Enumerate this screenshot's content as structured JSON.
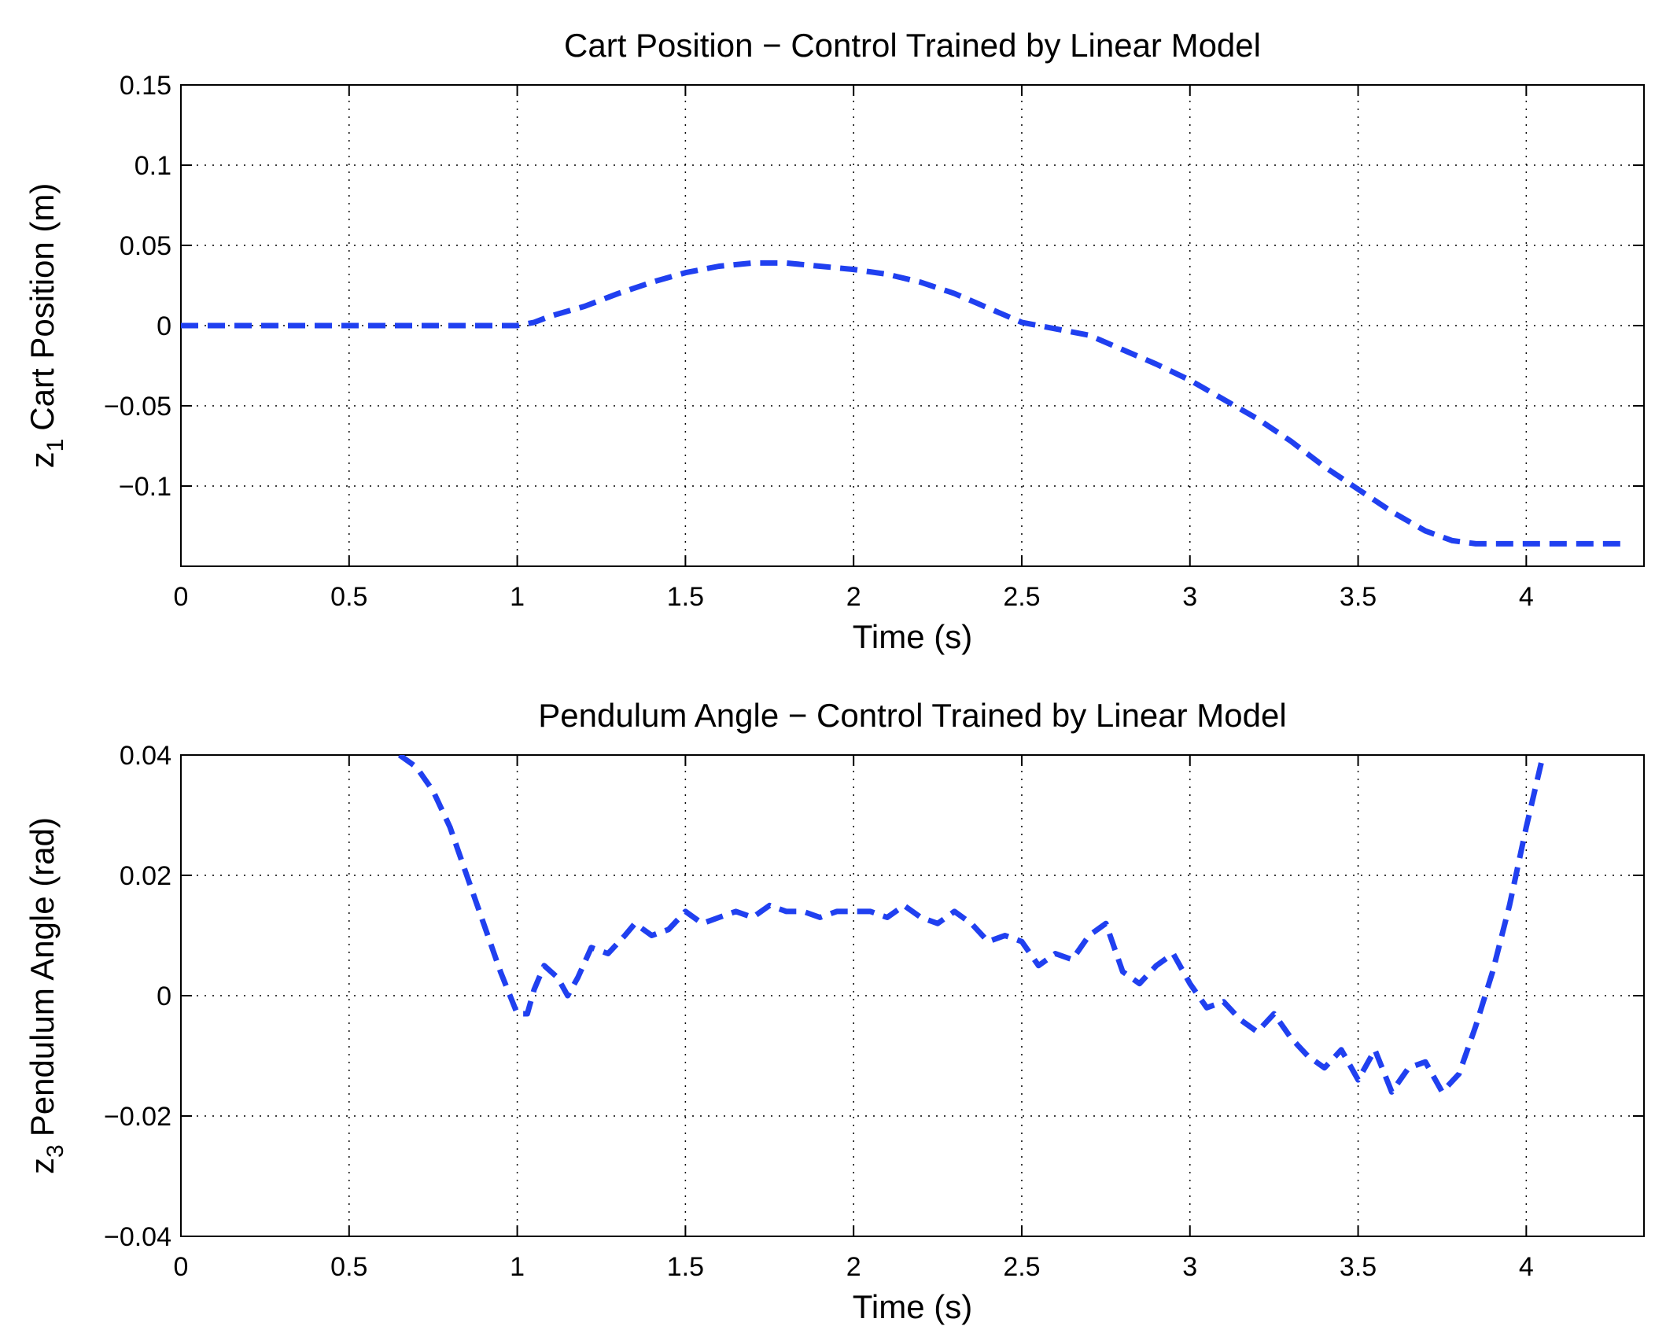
{
  "chart_data": [
    {
      "type": "line",
      "title": "Cart Position − Control Trained by Linear Model",
      "xlabel": "Time (s)",
      "ylabel_var": "z",
      "ylabel_sub": "1",
      "ylabel_text": "Cart Position (m)",
      "xlim": [
        0,
        4.35
      ],
      "ylim": [
        -0.15,
        0.15
      ],
      "grid": true,
      "x_ticks": [
        0,
        0.5,
        1,
        1.5,
        2,
        2.5,
        3,
        3.5,
        4
      ],
      "x_tick_labels": [
        "0",
        "0.5",
        "1",
        "1.5",
        "2",
        "2.5",
        "3",
        "3.5",
        "4"
      ],
      "y_ticks": [
        -0.1,
        -0.05,
        0,
        0.05,
        0.1,
        0.15
      ],
      "y_tick_labels": [
        "−0.1",
        "−0.05",
        "0",
        "0.05",
        "0.1",
        "0.15"
      ],
      "series": [
        {
          "name": "z1",
          "color": "#2040f0",
          "style": "dashed",
          "x": [
            0,
            0.5,
            1.0,
            1.05,
            1.1,
            1.2,
            1.3,
            1.4,
            1.5,
            1.6,
            1.7,
            1.8,
            1.9,
            2.0,
            2.1,
            2.2,
            2.3,
            2.4,
            2.5,
            2.6,
            2.7,
            2.8,
            2.9,
            3.0,
            3.1,
            3.2,
            3.3,
            3.4,
            3.5,
            3.6,
            3.7,
            3.78,
            3.85,
            4.0,
            4.2,
            4.28
          ],
          "y": [
            0,
            0,
            0,
            0.002,
            0.006,
            0.012,
            0.02,
            0.027,
            0.033,
            0.037,
            0.039,
            0.039,
            0.037,
            0.035,
            0.032,
            0.027,
            0.02,
            0.011,
            0.002,
            -0.002,
            -0.006,
            -0.015,
            -0.024,
            -0.034,
            -0.046,
            -0.058,
            -0.072,
            -0.088,
            -0.102,
            -0.116,
            -0.128,
            -0.134,
            -0.136,
            -0.136,
            -0.136,
            -0.136
          ]
        }
      ]
    },
    {
      "type": "line",
      "title": "Pendulum Angle − Control Trained by Linear Model",
      "xlabel": "Time (s)",
      "ylabel_var": "z",
      "ylabel_sub": "3",
      "ylabel_text": "Pendulum Angle (rad)",
      "xlim": [
        0,
        4.35
      ],
      "ylim": [
        -0.04,
        0.04
      ],
      "grid": true,
      "x_ticks": [
        0,
        0.5,
        1,
        1.5,
        2,
        2.5,
        3,
        3.5,
        4
      ],
      "x_tick_labels": [
        "0",
        "0.5",
        "1",
        "1.5",
        "2",
        "2.5",
        "3",
        "3.5",
        "4"
      ],
      "y_ticks": [
        -0.04,
        -0.02,
        0,
        0.02,
        0.04
      ],
      "y_tick_labels": [
        "−0.04",
        "−0.02",
        "0",
        "0.02",
        "0.04"
      ],
      "series": [
        {
          "name": "z3",
          "color": "#2040f0",
          "style": "dashed",
          "x": [
            0.65,
            0.7,
            0.75,
            0.8,
            0.85,
            0.9,
            0.95,
            1.0,
            1.03,
            1.05,
            1.08,
            1.12,
            1.15,
            1.18,
            1.22,
            1.27,
            1.32,
            1.35,
            1.4,
            1.45,
            1.5,
            1.55,
            1.6,
            1.65,
            1.7,
            1.75,
            1.8,
            1.85,
            1.9,
            1.95,
            2.0,
            2.05,
            2.1,
            2.15,
            2.2,
            2.25,
            2.3,
            2.35,
            2.4,
            2.45,
            2.5,
            2.55,
            2.6,
            2.65,
            2.7,
            2.75,
            2.8,
            2.85,
            2.9,
            2.95,
            3.0,
            3.05,
            3.1,
            3.15,
            3.2,
            3.25,
            3.3,
            3.35,
            3.4,
            3.45,
            3.5,
            3.55,
            3.6,
            3.65,
            3.7,
            3.75,
            3.8,
            3.85,
            3.9,
            3.95,
            4.0,
            4.05
          ],
          "y": [
            0.04,
            0.038,
            0.034,
            0.028,
            0.02,
            0.012,
            0.004,
            -0.003,
            -0.003,
            0.001,
            0.005,
            0.003,
            0.0,
            0.003,
            0.008,
            0.007,
            0.01,
            0.012,
            0.01,
            0.011,
            0.014,
            0.012,
            0.013,
            0.014,
            0.013,
            0.015,
            0.014,
            0.014,
            0.013,
            0.014,
            0.014,
            0.014,
            0.013,
            0.015,
            0.013,
            0.012,
            0.014,
            0.012,
            0.009,
            0.01,
            0.009,
            0.005,
            0.007,
            0.006,
            0.01,
            0.012,
            0.004,
            0.002,
            0.005,
            0.007,
            0.002,
            -0.002,
            -0.001,
            -0.004,
            -0.006,
            -0.003,
            -0.007,
            -0.01,
            -0.012,
            -0.009,
            -0.014,
            -0.009,
            -0.016,
            -0.012,
            -0.011,
            -0.016,
            -0.013,
            -0.005,
            0.004,
            0.015,
            0.028,
            0.04
          ]
        }
      ]
    }
  ]
}
